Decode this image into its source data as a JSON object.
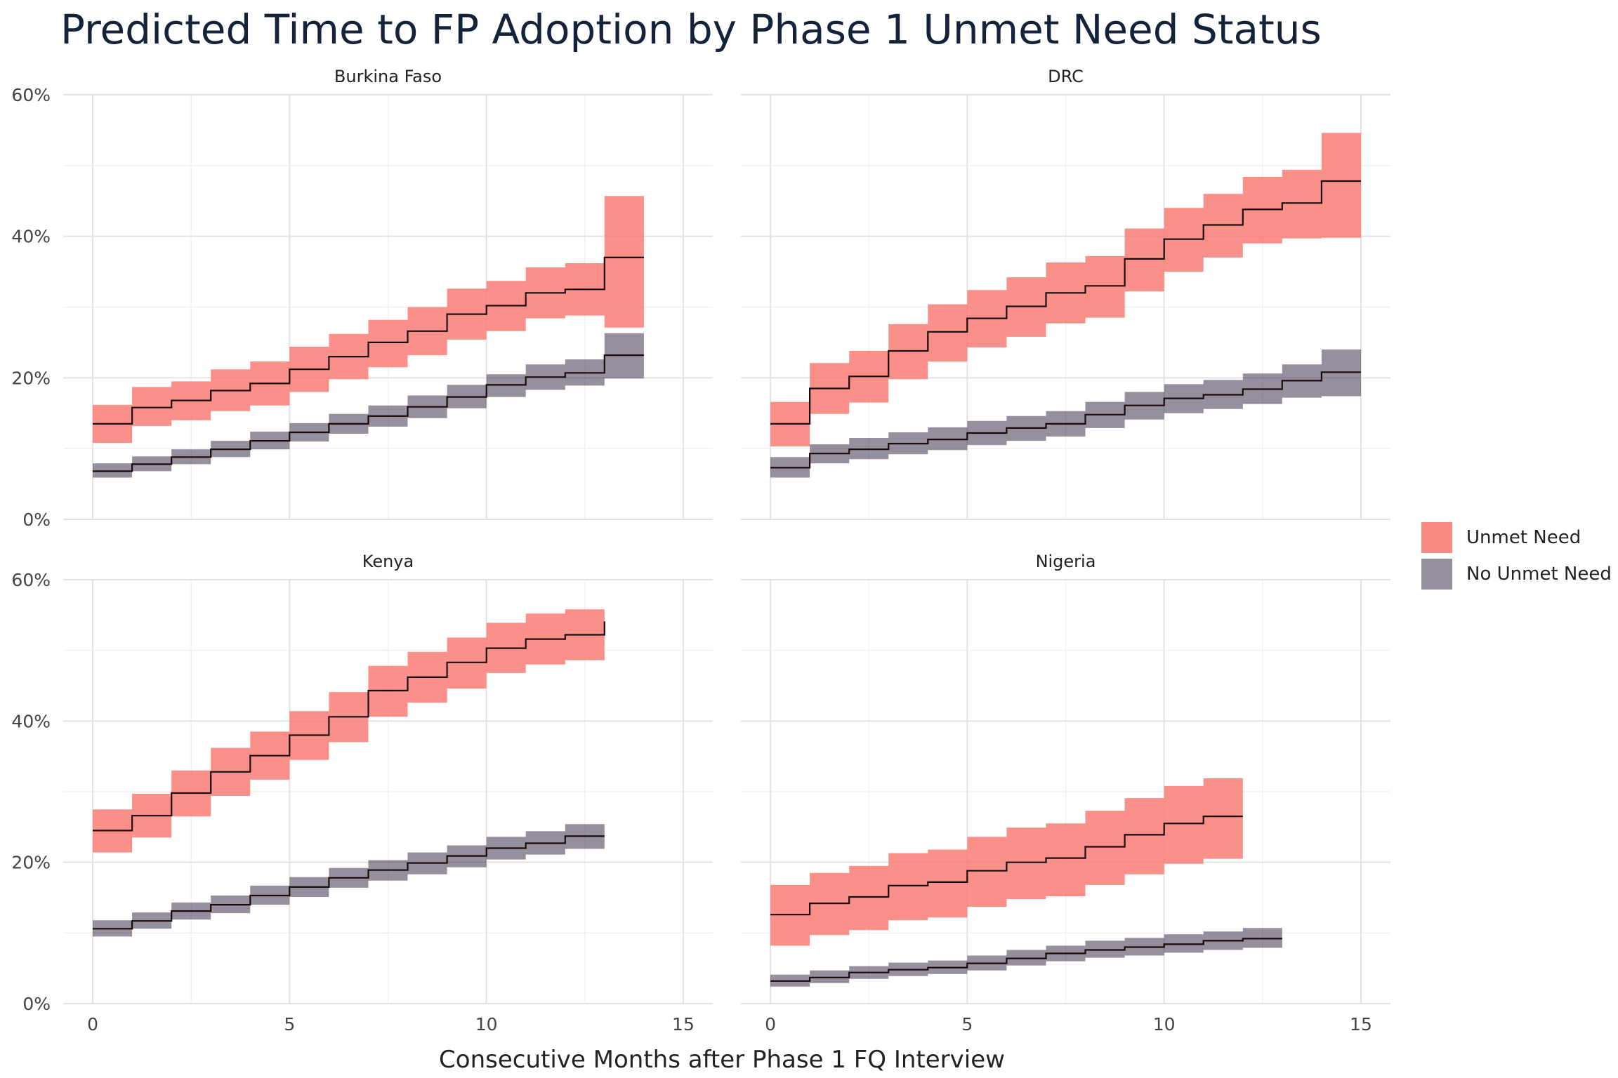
{
  "chart_data": {
    "type": "area",
    "title": "Predicted Time to FP Adoption by Phase 1 Unmet Need Status",
    "xlabel": "Consecutive Months after Phase 1 FQ Interview",
    "ylabel": "",
    "x_ticks": [
      "0",
      "5",
      "10",
      "15"
    ],
    "y_ticks": [
      "0%",
      "20%",
      "40%",
      "60%"
    ],
    "xlim": [
      -0.75,
      15.75
    ],
    "ylim": [
      0,
      60
    ],
    "grid": true,
    "legend_position": "right",
    "legend": [
      {
        "name": "Unmet Need",
        "color": "#F8766D"
      },
      {
        "name": "No Unmet Need",
        "color": "#2E1F3E"
      }
    ],
    "panels": [
      {
        "name": "Burkina Faso",
        "series": [
          {
            "name": "Unmet Need",
            "x": [
              0,
              1,
              2,
              3,
              4,
              5,
              6,
              7,
              8,
              9,
              10,
              11,
              12,
              13,
              14
            ],
            "estimate": [
              13.5,
              15.8,
              16.8,
              18.2,
              19.2,
              21.2,
              23.0,
              25.0,
              26.6,
              29.0,
              30.2,
              32.0,
              32.5,
              37.0,
              37.0
            ],
            "lower": [
              10.8,
              13.2,
              14.0,
              15.3,
              16.1,
              18.0,
              19.8,
              21.5,
              23.2,
              25.4,
              26.6,
              28.4,
              28.8,
              27.1,
              27.1
            ],
            "upper": [
              16.2,
              18.7,
              19.5,
              21.2,
              22.3,
              24.4,
              26.2,
              28.2,
              30.0,
              32.6,
              33.7,
              35.6,
              36.2,
              45.7,
              45.7
            ]
          },
          {
            "name": "No Unmet Need",
            "x": [
              0,
              1,
              2,
              3,
              4,
              5,
              6,
              7,
              8,
              9,
              10,
              11,
              12,
              13,
              14
            ],
            "estimate": [
              6.8,
              7.8,
              8.8,
              9.9,
              11.1,
              12.3,
              13.5,
              14.6,
              15.9,
              17.3,
              19.0,
              20.1,
              20.7,
              23.2,
              23.2
            ],
            "lower": [
              5.9,
              6.8,
              7.8,
              8.8,
              9.9,
              11.0,
              12.1,
              13.1,
              14.3,
              15.7,
              17.3,
              18.3,
              18.9,
              19.9,
              19.9
            ],
            "upper": [
              7.9,
              8.9,
              9.9,
              11.1,
              12.4,
              13.6,
              14.9,
              16.1,
              17.5,
              19.0,
              20.5,
              21.9,
              22.6,
              26.3,
              26.3
            ]
          }
        ]
      },
      {
        "name": "DRC",
        "series": [
          {
            "name": "Unmet Need",
            "x": [
              0,
              1,
              2,
              3,
              4,
              5,
              6,
              7,
              8,
              9,
              10,
              11,
              12,
              13,
              14,
              15
            ],
            "estimate": [
              13.5,
              18.5,
              20.2,
              23.8,
              26.5,
              28.4,
              30.1,
              32.0,
              33.0,
              36.8,
              39.6,
              41.6,
              43.8,
              44.7,
              47.8,
              47.8
            ],
            "lower": [
              10.3,
              14.9,
              16.5,
              19.8,
              22.3,
              24.3,
              25.8,
              27.7,
              28.5,
              32.2,
              35.0,
              37.0,
              39.0,
              39.7,
              39.8,
              39.8
            ],
            "upper": [
              16.6,
              22.1,
              23.8,
              27.6,
              30.4,
              32.4,
              34.2,
              36.3,
              37.2,
              41.1,
              44.0,
              46.0,
              48.4,
              49.4,
              54.6,
              54.6
            ]
          },
          {
            "name": "No Unmet Need",
            "x": [
              0,
              1,
              2,
              3,
              4,
              5,
              6,
              7,
              8,
              9,
              10,
              11,
              12,
              13,
              14,
              15
            ],
            "estimate": [
              7.3,
              9.3,
              9.9,
              10.7,
              11.3,
              12.2,
              12.9,
              13.5,
              14.8,
              16.1,
              17.1,
              17.6,
              18.4,
              19.6,
              20.8,
              20.8
            ],
            "lower": [
              5.9,
              7.9,
              8.5,
              9.2,
              9.8,
              10.5,
              11.1,
              11.7,
              12.9,
              14.1,
              15.0,
              15.6,
              16.3,
              17.2,
              17.4,
              17.4
            ],
            "upper": [
              8.8,
              10.6,
              11.5,
              12.3,
              13.0,
              13.9,
              14.6,
              15.3,
              16.6,
              18.0,
              19.1,
              19.7,
              20.6,
              21.9,
              24.0,
              24.0
            ]
          }
        ]
      },
      {
        "name": "Kenya",
        "series": [
          {
            "name": "Unmet Need",
            "x": [
              0,
              1,
              2,
              3,
              4,
              5,
              6,
              7,
              8,
              9,
              10,
              11,
              12,
              13
            ],
            "estimate": [
              24.5,
              26.6,
              29.8,
              32.8,
              35.1,
              38.0,
              40.6,
              44.3,
              46.2,
              48.3,
              50.3,
              51.6,
              52.2,
              54.1
            ],
            "lower": [
              21.4,
              23.5,
              26.5,
              29.4,
              31.7,
              34.5,
              37.0,
              40.6,
              42.6,
              44.6,
              46.8,
              48.0,
              48.6,
              48.6
            ],
            "upper": [
              27.5,
              29.7,
              33.0,
              36.2,
              38.5,
              41.4,
              44.1,
              47.8,
              49.8,
              51.8,
              53.9,
              55.2,
              55.8,
              55.8
            ]
          },
          {
            "name": "No Unmet Need",
            "x": [
              0,
              1,
              2,
              3,
              4,
              5,
              6,
              7,
              8,
              9,
              10,
              11,
              12,
              13
            ],
            "estimate": [
              10.6,
              11.7,
              13.1,
              14.0,
              15.3,
              16.5,
              17.8,
              18.9,
              19.9,
              20.9,
              22.0,
              22.7,
              23.7,
              23.7
            ],
            "lower": [
              9.5,
              10.6,
              11.9,
              12.8,
              14.0,
              15.1,
              16.4,
              17.4,
              18.3,
              19.3,
              20.4,
              21.1,
              21.9,
              21.9
            ],
            "upper": [
              11.8,
              12.9,
              14.3,
              15.3,
              16.7,
              17.9,
              19.2,
              20.3,
              21.4,
              22.4,
              23.6,
              24.4,
              25.4,
              25.4
            ]
          }
        ]
      },
      {
        "name": "Nigeria",
        "series": [
          {
            "name": "Unmet Need",
            "x": [
              0,
              1,
              2,
              3,
              4,
              5,
              6,
              7,
              8,
              9,
              10,
              11,
              12
            ],
            "estimate": [
              12.6,
              14.2,
              15.1,
              16.7,
              17.2,
              18.8,
              20.0,
              20.6,
              22.2,
              23.9,
              25.5,
              26.5,
              26.5
            ],
            "lower": [
              8.2,
              9.7,
              10.4,
              11.8,
              12.2,
              13.7,
              14.8,
              15.2,
              16.8,
              18.3,
              19.8,
              20.5,
              20.5
            ],
            "upper": [
              16.8,
              18.5,
              19.5,
              21.3,
              21.8,
              23.6,
              24.9,
              25.5,
              27.3,
              29.1,
              30.8,
              31.9,
              31.9
            ]
          },
          {
            "name": "No Unmet Need",
            "x": [
              0,
              1,
              2,
              3,
              4,
              5,
              6,
              7,
              8,
              9,
              10,
              11,
              12,
              13
            ],
            "estimate": [
              3.2,
              3.7,
              4.4,
              4.8,
              5.1,
              5.7,
              6.4,
              7.1,
              7.6,
              8.0,
              8.4,
              8.9,
              9.2,
              9.2
            ],
            "lower": [
              2.4,
              2.9,
              3.5,
              3.9,
              4.2,
              4.7,
              5.4,
              6.0,
              6.5,
              6.8,
              7.2,
              7.6,
              7.9,
              7.9
            ],
            "upper": [
              4.1,
              4.7,
              5.3,
              5.8,
              6.1,
              6.8,
              7.6,
              8.2,
              8.9,
              9.3,
              9.8,
              10.2,
              10.7,
              10.7
            ]
          }
        ]
      }
    ]
  }
}
